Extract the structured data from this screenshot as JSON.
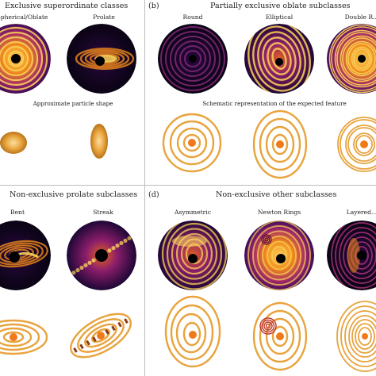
{
  "panels": [
    {
      "id": "a",
      "label": "",
      "title": "Exclusive superordinate classes",
      "images": [
        {
          "label": "Spherical/Oblate",
          "kind": "round-bright"
        },
        {
          "label": "Prolate",
          "kind": "prolate"
        }
      ],
      "caption": "Approximate particle shape",
      "shapes": [
        "oblate-particle",
        "prolate-particle"
      ]
    },
    {
      "id": "b",
      "label": "(b)",
      "title": "Partially exclusive oblate subclasses",
      "images": [
        {
          "label": "Round",
          "kind": "round-dark"
        },
        {
          "label": "Elliptical",
          "kind": "elliptical"
        },
        {
          "label": "Double R...",
          "kind": "double-rings"
        }
      ],
      "caption": "Schematic representation of the expected feature",
      "schematics": [
        "concentric-circles",
        "concentric-ellipses",
        "double-rings"
      ]
    },
    {
      "id": "c",
      "label": "",
      "title": "Non-exclusive prolate subclasses",
      "images": [
        {
          "label": "Bent",
          "kind": "bent"
        },
        {
          "label": "Streak",
          "kind": "streak"
        }
      ],
      "schematics": [
        "flat-ellipses",
        "tilted-ellipses-streak"
      ]
    },
    {
      "id": "d",
      "label": "(d)",
      "title": "Non-exclusive other subclasses",
      "images": [
        {
          "label": "Asymmetric",
          "kind": "asymmetric"
        },
        {
          "label": "Newton Rings",
          "kind": "newton"
        },
        {
          "label": "Layered...",
          "kind": "layered"
        }
      ],
      "schematics": [
        "offset-ellipses",
        "ellipses-with-newton-rings",
        "layered-ellipses"
      ]
    }
  ],
  "colors": {
    "ring": "#e8a33c",
    "ring_dark": "#d08a28",
    "center": "#f07a1a",
    "background": "#ffffff",
    "divider": "#bdbdbd",
    "inferno_dark": "#12051f",
    "inferno_purple": "#4a0c6b",
    "inferno_orange": "#f08a1a",
    "inferno_yellow": "#fbd35a",
    "newton_accent": "#c0392b"
  }
}
